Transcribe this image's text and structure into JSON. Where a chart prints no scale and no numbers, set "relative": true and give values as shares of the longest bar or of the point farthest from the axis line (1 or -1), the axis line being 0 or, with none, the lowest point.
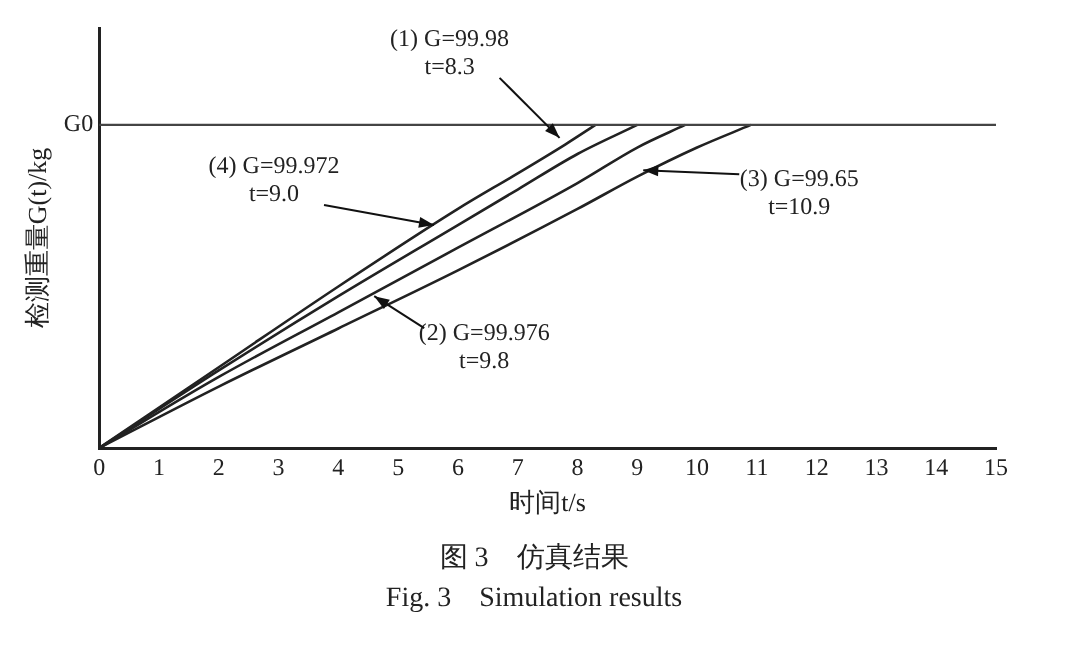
{
  "chart_data": {
    "type": "line",
    "relative": true,
    "xlabel": "时间t/s",
    "ylabel": "检测重量G(t)/kg",
    "xlim": [
      0,
      15
    ],
    "xticks": [
      0,
      1,
      2,
      3,
      4,
      5,
      6,
      7,
      8,
      9,
      10,
      11,
      12,
      13,
      14,
      15
    ],
    "grid": false,
    "legend": false,
    "marker": "none",
    "line_style": "solid",
    "series": [
      {
        "color": "#222222",
        "x": [
          0,
          2,
          4,
          6,
          7,
          7.8,
          8.3
        ],
        "values": [
          0,
          0.25,
          0.5,
          0.74,
          0.85,
          0.94,
          1
        ]
      },
      {
        "color": "#222222",
        "x": [
          0,
          2,
          4,
          6,
          8,
          9,
          9.8
        ],
        "values": [
          0,
          0.22,
          0.42,
          0.62,
          0.82,
          0.93,
          1
        ]
      },
      {
        "color": "#222222",
        "x": [
          0,
          2,
          4,
          6,
          8,
          9,
          10,
          10.9
        ],
        "values": [
          0,
          0.19,
          0.37,
          0.55,
          0.74,
          0.84,
          0.93,
          1
        ]
      },
      {
        "color": "#222222",
        "x": [
          0,
          2,
          4,
          6,
          7,
          8,
          9
        ],
        "values": [
          0,
          0.24,
          0.47,
          0.69,
          0.8,
          0.91,
          1
        ]
      }
    ],
    "ref_lines": [
      {
        "axis": "y",
        "value": 1,
        "label": "G0",
        "color": "#444444"
      }
    ],
    "annotations": [
      {
        "text": "(1) G=99.98\nt=8.3",
        "x": 7.7,
        "y": 0.96
      },
      {
        "text": "(4) G=99.972\nt=9.0",
        "x": 5.6,
        "y": 0.69
      },
      {
        "text": "(2) G=99.976\nt=9.8",
        "x": 4.6,
        "y": 0.47
      },
      {
        "text": "(3) G=99.65\nt=10.9",
        "x": 9.1,
        "y": 0.86
      },
      "图 3　仿真结果",
      "Fig. 3　Simulation results"
    ]
  }
}
